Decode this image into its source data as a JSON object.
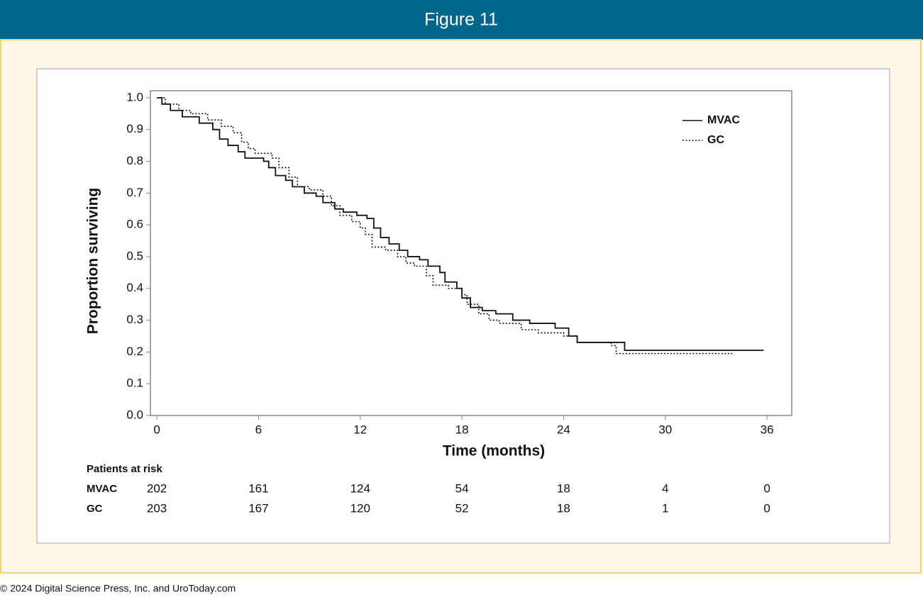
{
  "header": {
    "title": "Figure 11"
  },
  "footer": "© 2024 Digital Science Press, Inc. and UroToday.com",
  "chart_data": {
    "type": "step",
    "x_label": "Time (months)",
    "y_label": "Proportion surviving",
    "xlim": [
      -0.38,
      37.46
    ],
    "ylim": [
      0,
      1.022
    ],
    "xticks": [
      0,
      6,
      12,
      18,
      24,
      30,
      36
    ],
    "yticks": [
      {
        "value": 0,
        "label": "0.0"
      },
      0.1,
      0.2,
      0.3,
      0.4,
      0.5,
      0.6,
      0.7,
      0.8,
      0.9,
      {
        "value": 1,
        "label": "1.0"
      }
    ],
    "legend": "upper right",
    "series": [
      {
        "name": "MVAC",
        "color": "#111111",
        "linestyle": "solid",
        "x": [
          0,
          0.3,
          0.8,
          1.5,
          2.5,
          3.3,
          3.7,
          4.2,
          4.8,
          5.2,
          6.3,
          6.6,
          7.0,
          7.6,
          8.0,
          8.7,
          9.4,
          9.8,
          10.5,
          11.0,
          11.8,
          12.4,
          12.8,
          13.2,
          13.7,
          14.3,
          14.8,
          15.5,
          16.0,
          16.7,
          17.0,
          17.7,
          18.0,
          18.5,
          19.2,
          20.0,
          21.0,
          22.0,
          23.5,
          24.3,
          24.8,
          27.6,
          35.8
        ],
        "values": [
          1.0,
          0.98,
          0.96,
          0.94,
          0.92,
          0.9,
          0.87,
          0.85,
          0.83,
          0.81,
          0.8,
          0.78,
          0.755,
          0.74,
          0.72,
          0.7,
          0.69,
          0.67,
          0.65,
          0.64,
          0.63,
          0.62,
          0.59,
          0.56,
          0.54,
          0.52,
          0.5,
          0.49,
          0.47,
          0.45,
          0.42,
          0.4,
          0.37,
          0.34,
          0.33,
          0.32,
          0.3,
          0.29,
          0.275,
          0.25,
          0.23,
          0.205,
          0.205
        ]
      },
      {
        "name": "GC",
        "color": "#111111",
        "linestyle": "dotted",
        "x": [
          0,
          0.5,
          1.3,
          2.0,
          3.0,
          3.8,
          4.5,
          5.0,
          5.4,
          5.8,
          6.8,
          7.2,
          7.8,
          8.3,
          9.0,
          9.8,
          10.3,
          10.8,
          11.5,
          12.0,
          12.3,
          12.7,
          13.5,
          14.2,
          14.7,
          15.2,
          15.9,
          16.3,
          17.2,
          18.0,
          18.3,
          19.0,
          19.6,
          20.2,
          21.5,
          22.5,
          24.0,
          24.8,
          26.8,
          27.1,
          34.0
        ],
        "values": [
          1.0,
          0.98,
          0.96,
          0.95,
          0.93,
          0.91,
          0.89,
          0.86,
          0.84,
          0.825,
          0.81,
          0.78,
          0.75,
          0.72,
          0.71,
          0.69,
          0.66,
          0.63,
          0.61,
          0.59,
          0.57,
          0.53,
          0.52,
          0.5,
          0.48,
          0.47,
          0.44,
          0.41,
          0.4,
          0.38,
          0.35,
          0.32,
          0.3,
          0.29,
          0.27,
          0.26,
          0.25,
          0.23,
          0.22,
          0.195,
          0.195
        ]
      }
    ],
    "risk_table": {
      "title": "Patients at risk",
      "rows": [
        {
          "name": "MVAC",
          "values": [
            202,
            161,
            124,
            54,
            18,
            4,
            0
          ]
        },
        {
          "name": "GC",
          "values": [
            203,
            167,
            120,
            52,
            18,
            1,
            0
          ]
        }
      ]
    }
  }
}
